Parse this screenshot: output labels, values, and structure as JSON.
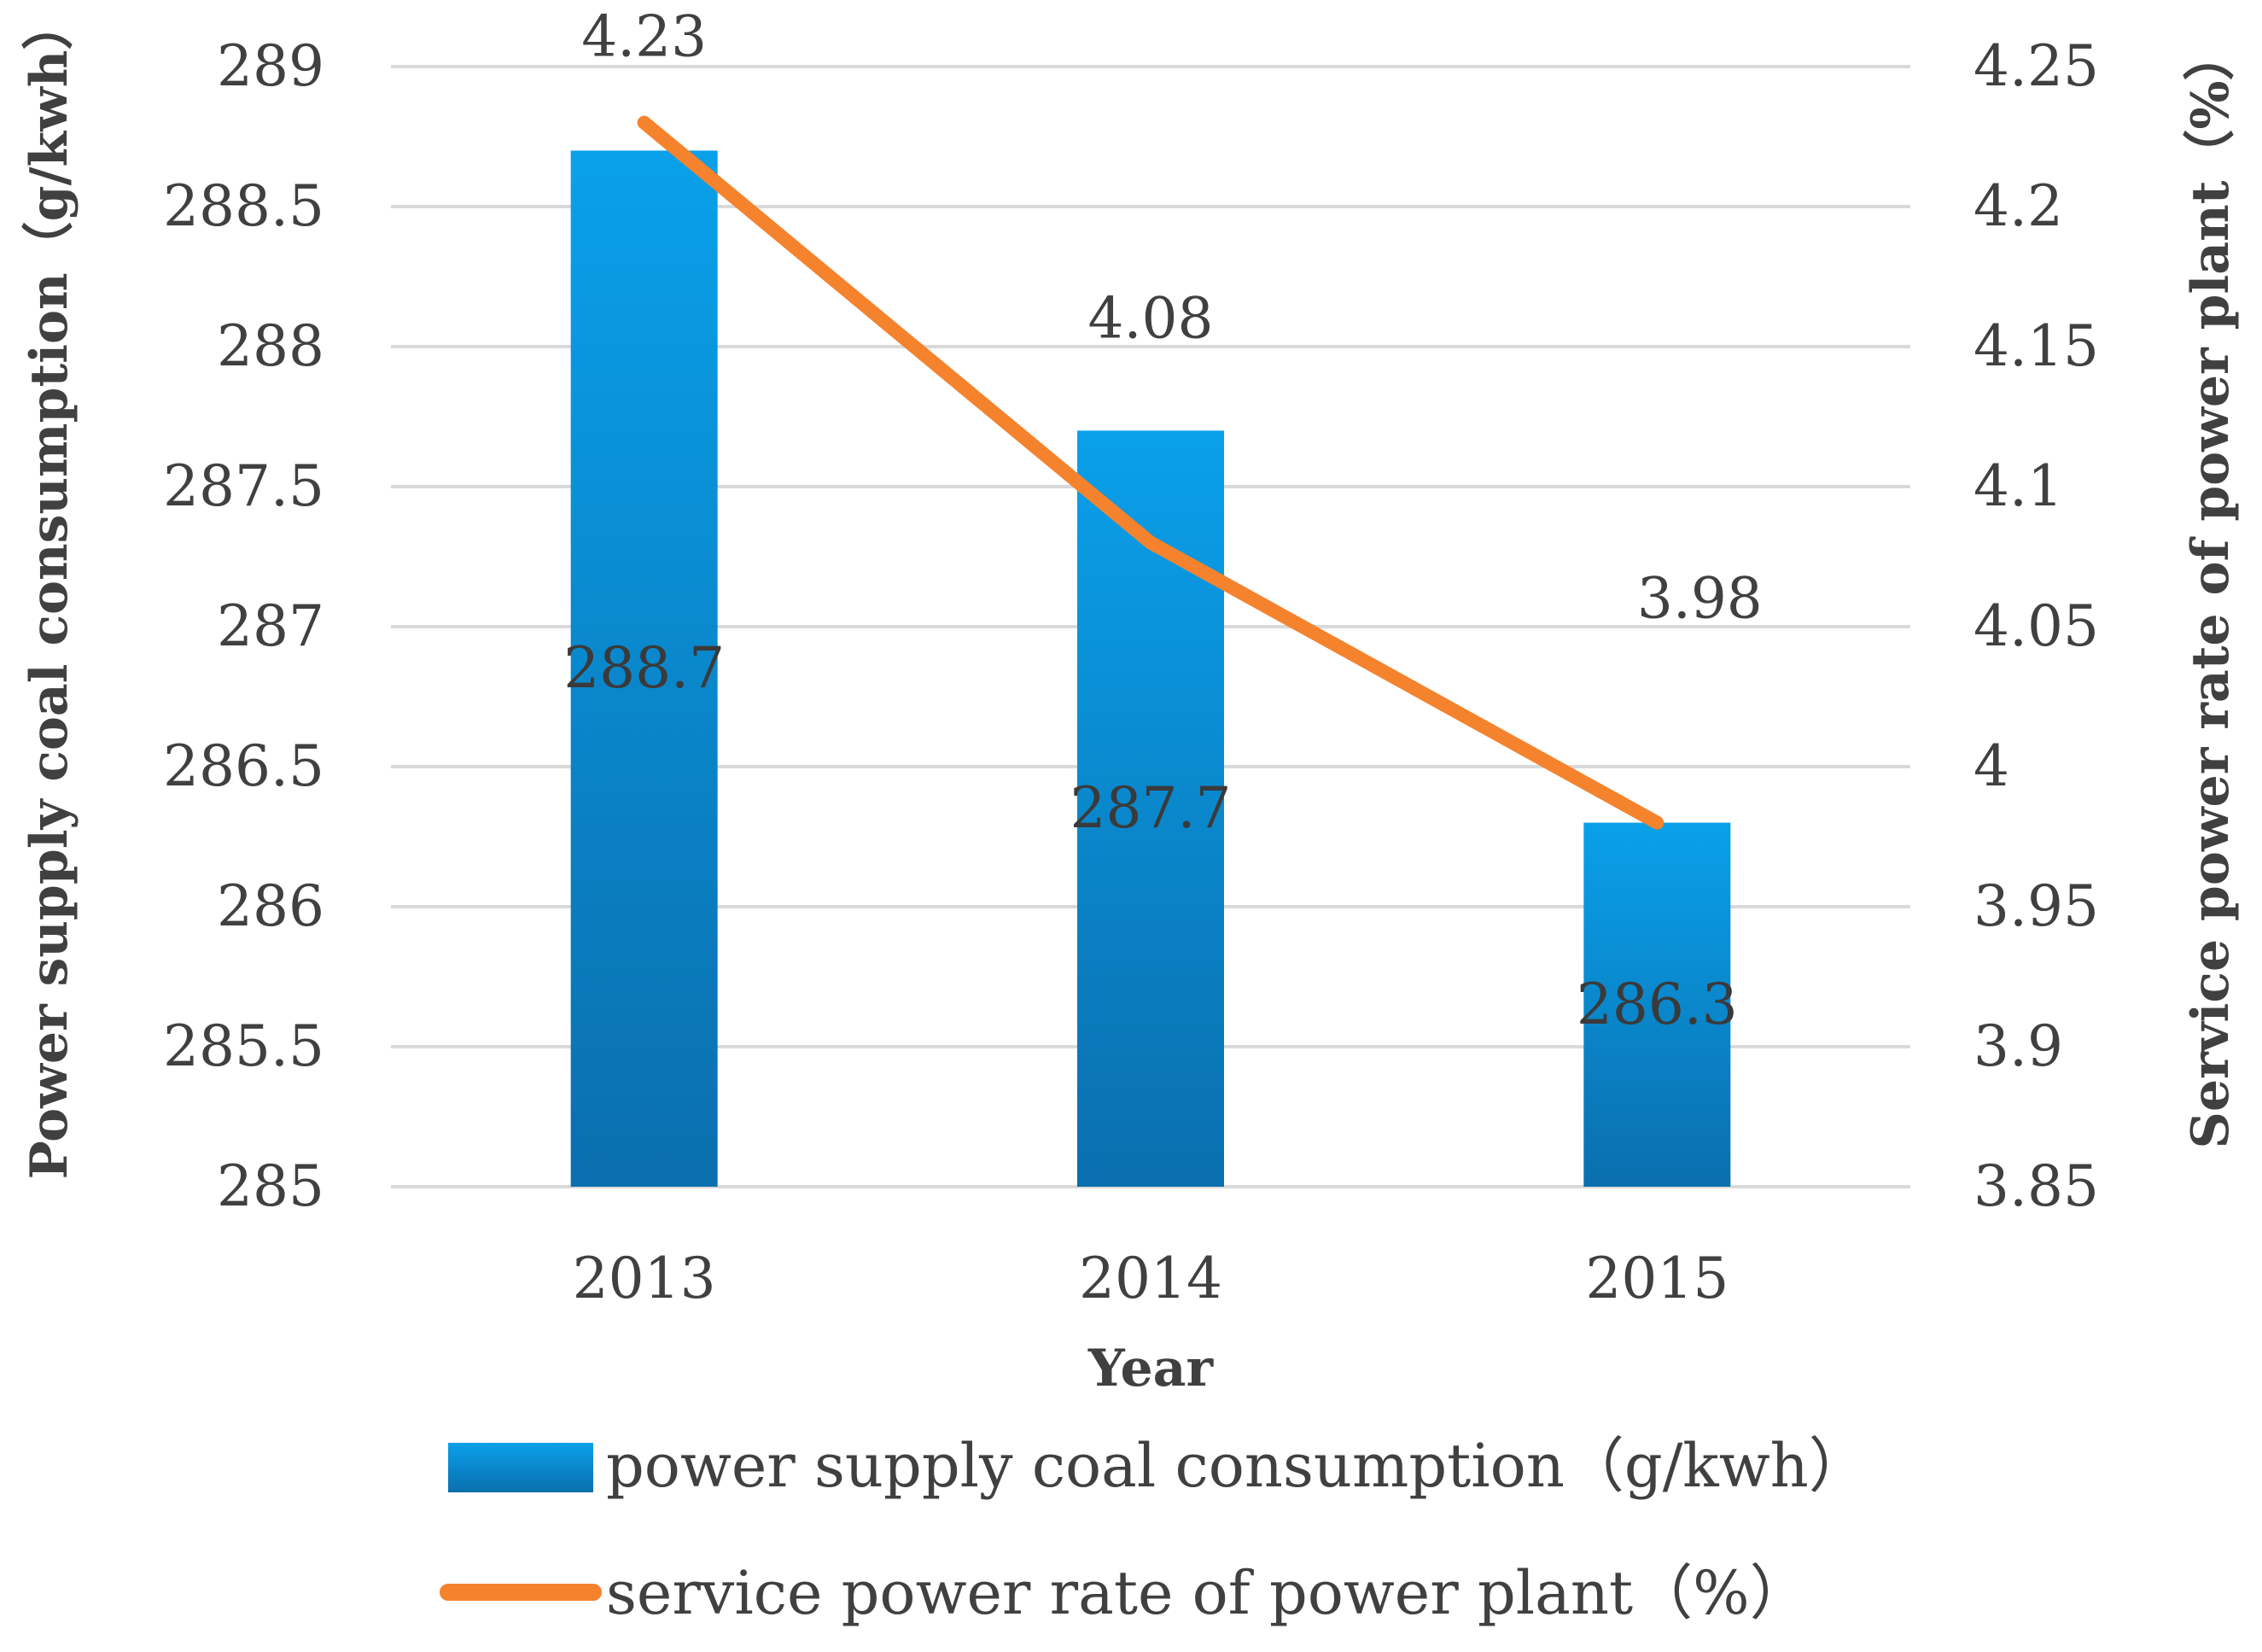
{
  "chart_data": {
    "type": "bar+line",
    "categories": [
      "2013",
      "2014",
      "2015"
    ],
    "xlabel": "Year",
    "series": [
      {
        "name": "power supply coal consumption（g/kwh）",
        "type": "bar",
        "axis": "left",
        "values": [
          288.7,
          287.7,
          286.3
        ],
        "data_labels": [
          "288.7",
          "287.7",
          "286.3"
        ],
        "color": "#0E8BD4"
      },
      {
        "name": "service power rate of power plant（%）",
        "type": "line",
        "axis": "right",
        "values": [
          4.23,
          4.08,
          3.98
        ],
        "data_labels": [
          "4.23",
          "4.08",
          "3.98"
        ],
        "color": "#F5822D"
      }
    ],
    "y_left": {
      "label": "Power supply coal consumption（g/kwh）",
      "range": [
        285,
        289
      ],
      "ticks": [
        "285",
        "285.5",
        "286",
        "286.5",
        "287",
        "287.5",
        "288",
        "288.5",
        "289"
      ]
    },
    "y_right": {
      "label": "Service power rate of power plant（%）",
      "range": [
        3.85,
        4.25
      ],
      "ticks": [
        "3.85",
        "3.9",
        "3.95",
        "4",
        "4.05",
        "4.1",
        "4.15",
        "4.2",
        "4.25"
      ]
    },
    "grid": true,
    "legend_position": "bottom"
  },
  "colors": {
    "bar_top": "#0AA0EA",
    "bar_bottom": "#0A6FAE",
    "line": "#F5822D",
    "grid": "#D9D9D9",
    "text": "#404040"
  }
}
